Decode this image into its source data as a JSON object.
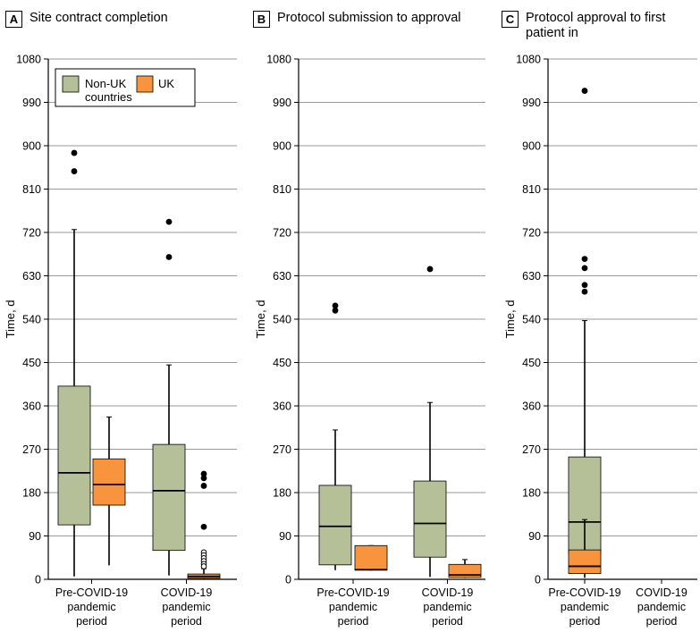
{
  "legend": {
    "items": [
      {
        "name": "Non-UK countries",
        "label_lines": [
          "Non-UK",
          "countries"
        ],
        "color": "#b5bf98"
      },
      {
        "name": "UK",
        "label_lines": [
          "UK"
        ],
        "color": "#f7943d"
      }
    ]
  },
  "chart_data": [
    {
      "type": "box",
      "panel_letter": "A",
      "title": "Site contract completion",
      "ylabel": "Time, d",
      "ylim": [
        0,
        1080
      ],
      "yticks": [
        0,
        90,
        180,
        270,
        360,
        450,
        540,
        630,
        720,
        810,
        900,
        990,
        1080
      ],
      "categories": [
        {
          "label_lines": [
            "Pre-COVID-19",
            "pandemic",
            "period"
          ]
        },
        {
          "label_lines": [
            "COVID-19",
            "pandemic",
            "period"
          ]
        }
      ],
      "series": [
        {
          "name": "Non-UK countries",
          "color": "#b5bf98",
          "boxes": [
            {
              "min": 6,
              "q1": 113,
              "median": 221,
              "q3": 401,
              "max": 726,
              "outliers": [
                885,
                847
              ],
              "open_outliers": []
            },
            {
              "min": 8,
              "q1": 60,
              "median": 184,
              "q3": 280,
              "max": 445,
              "outliers": [
                742,
                669
              ],
              "open_outliers": []
            }
          ]
        },
        {
          "name": "UK",
          "color": "#f7943d",
          "boxes": [
            {
              "min": 29,
              "q1": 154,
              "median": 197,
              "q3": 250,
              "max": 337,
              "outliers": [],
              "open_outliers": []
            },
            {
              "min": 0,
              "q1": 2,
              "median": 6,
              "q3": 11,
              "max": 22,
              "outliers": [
                219,
                210,
                194,
                109
              ],
              "open_outliers": [
                56,
                50,
                44,
                38,
                32,
                27
              ]
            }
          ]
        }
      ]
    },
    {
      "type": "box",
      "panel_letter": "B",
      "title": "Protocol submission to approval",
      "ylabel": "Time, d",
      "ylim": [
        0,
        1080
      ],
      "yticks": [
        0,
        90,
        180,
        270,
        360,
        450,
        540,
        630,
        720,
        810,
        900,
        990,
        1080
      ],
      "categories": [
        {
          "label_lines": [
            "Pre-COVID-19",
            "pandemic",
            "period"
          ]
        },
        {
          "label_lines": [
            "COVID-19",
            "pandemic",
            "period"
          ]
        }
      ],
      "series": [
        {
          "name": "Non-UK countries",
          "color": "#b5bf98",
          "boxes": [
            {
              "min": 19,
              "q1": 30,
              "median": 110,
              "q3": 195,
              "max": 310,
              "outliers": [
                568,
                558
              ],
              "open_outliers": []
            },
            {
              "min": 5,
              "q1": 46,
              "median": 116,
              "q3": 204,
              "max": 367,
              "outliers": [
                644
              ],
              "open_outliers": []
            }
          ]
        },
        {
          "name": "UK",
          "color": "#f7943d",
          "boxes": [
            {
              "min": 18,
              "q1": 19,
              "median": 20,
              "q3": 70,
              "max": 70,
              "outliers": [],
              "open_outliers": []
            },
            {
              "min": 3,
              "q1": 4,
              "median": 9,
              "q3": 31,
              "max": 41,
              "outliers": [],
              "open_outliers": []
            }
          ]
        }
      ]
    },
    {
      "type": "box",
      "panel_letter": "C",
      "title": "Protocol approval to first patient in",
      "title_lines": [
        "Protocol approval to first",
        "patient in"
      ],
      "ylabel": "Time, d",
      "ylim": [
        0,
        1080
      ],
      "yticks": [
        0,
        90,
        180,
        270,
        360,
        450,
        540,
        630,
        720,
        810,
        900,
        990,
        1080
      ],
      "categories": [
        {
          "label_lines": [
            "Pre-COVID-19",
            "pandemic",
            "period"
          ]
        },
        {
          "label_lines": [
            "COVID-19",
            "pandemic",
            "period"
          ]
        }
      ],
      "series": [
        {
          "name": "Non-UK countries",
          "color": "#b5bf98",
          "boxes": [
            {
              "min": 3,
              "q1": 54,
              "median": 119,
              "q3": 254,
              "max": 537,
              "outliers": [
                1014,
                665,
                646,
                611,
                597
              ],
              "open_outliers": []
            }
          ]
        },
        {
          "name": "UK",
          "color": "#f7943d",
          "boxes": [
            {
              "min": 12,
              "q1": 12,
              "median": 27,
              "q3": 61,
              "max": 124,
              "outliers": [],
              "open_outliers": []
            }
          ]
        }
      ]
    }
  ]
}
